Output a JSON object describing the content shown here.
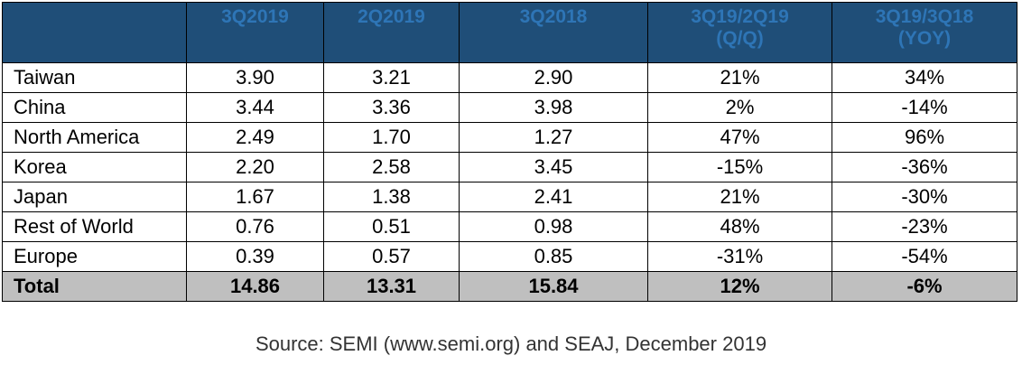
{
  "chart_data": {
    "type": "table",
    "columns": [
      {
        "lines": [
          ""
        ]
      },
      {
        "lines": [
          "3Q2019"
        ]
      },
      {
        "lines": [
          "2Q2019"
        ]
      },
      {
        "lines": [
          "3Q2018"
        ]
      },
      {
        "lines": [
          "3Q19/2Q19",
          "(Q/Q)"
        ]
      },
      {
        "lines": [
          "3Q19/3Q18",
          "(YOY)"
        ]
      }
    ],
    "rows": [
      {
        "region": "Taiwan",
        "cells": [
          "3.90",
          "3.21",
          "2.90",
          "21%",
          "34%"
        ]
      },
      {
        "region": "China",
        "cells": [
          "3.44",
          "3.36",
          "3.98",
          "2%",
          "-14%"
        ]
      },
      {
        "region": "North America",
        "cells": [
          "2.49",
          "1.70",
          "1.27",
          "47%",
          "96%"
        ]
      },
      {
        "region": "Korea",
        "cells": [
          "2.20",
          "2.58",
          "3.45",
          "-15%",
          "-36%"
        ]
      },
      {
        "region": "Japan",
        "cells": [
          "1.67",
          "1.38",
          "2.41",
          "21%",
          "-30%"
        ]
      },
      {
        "region": "Rest of World",
        "cells": [
          "0.76",
          "0.51",
          "0.98",
          "48%",
          "-23%"
        ]
      },
      {
        "region": "Europe",
        "cells": [
          "0.39",
          "0.57",
          "0.85",
          "-31%",
          "-54%"
        ]
      }
    ],
    "total": {
      "region": "Total",
      "cells": [
        "14.86",
        "13.31",
        "15.84",
        "12%",
        "-6%"
      ]
    },
    "source": "Source: SEMI (www.semi.org) and SEAJ, December 2019",
    "colors": {
      "header_bg": "#1f4e78",
      "header_text": "#2e75b6",
      "total_bg": "#bfbfbf"
    }
  }
}
